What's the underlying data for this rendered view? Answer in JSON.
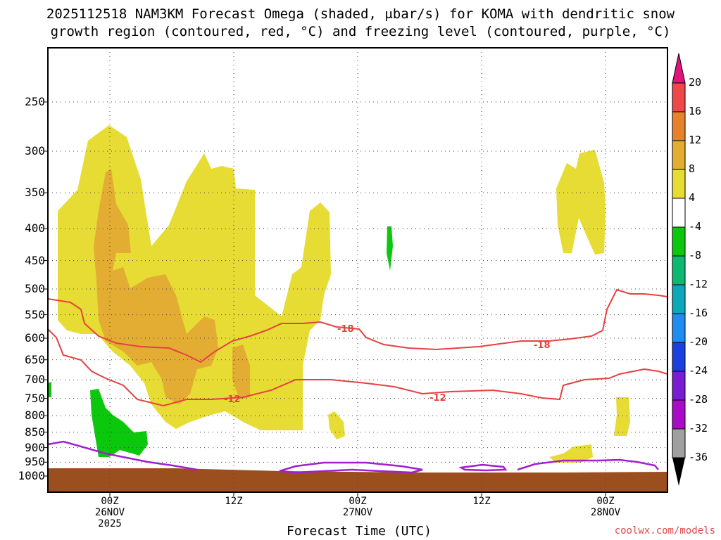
{
  "title": {
    "line1": "2025112518 NAM3KM Forecast Omega (shaded, μbar/s) for KOMA with dendritic snow",
    "line2": "growth region (contoured, red, °C) and freezing level (contoured, purple, °C)"
  },
  "chart_data": {
    "type": "heatmap",
    "title": "2025112518 NAM3KM Forecast Omega (shaded, μbar/s) for KOMA with dendritic snow growth region (contoured, red, °C) and freezing level (contoured, purple, °C)",
    "xlabel": "Forecast Time (UTC)",
    "ylabel": "",
    "y_axis_scale": "log-pressure (inverted)",
    "ylim": [
      1000,
      200
    ],
    "y_ticks": [
      250,
      300,
      350,
      400,
      450,
      500,
      550,
      600,
      650,
      700,
      750,
      800,
      850,
      900,
      950,
      1000
    ],
    "x_ticks": [
      {
        "label": "00Z",
        "sub1": "26NOV",
        "sub2": "2025"
      },
      {
        "label": "12Z",
        "sub1": "",
        "sub2": ""
      },
      {
        "label": "00Z",
        "sub1": "27NOV",
        "sub2": ""
      },
      {
        "label": "12Z",
        "sub1": "",
        "sub2": ""
      },
      {
        "label": "00Z",
        "sub1": "28NOV",
        "sub2": ""
      }
    ],
    "x_tick_hours": [
      6,
      18,
      30,
      42,
      54
    ],
    "xlim_hours": [
      0,
      60
    ],
    "grid": true,
    "colorbar": {
      "labels": [
        "20",
        "16",
        "12",
        "8",
        "4",
        "-4",
        "-8",
        "-12",
        "-16",
        "-20",
        "-24",
        "-28",
        "-32",
        "-36"
      ],
      "colors": [
        "#f04848",
        "#e8822a",
        "#e3ad33",
        "#e6dc34",
        "#ffffff",
        "#0cc80c",
        "#0eb870",
        "#0aa8b8",
        "#1e8cf0",
        "#1c40e0",
        "#7a1cd4",
        "#a80cc8",
        "#a0a0a0",
        "#000000"
      ],
      "top_arrow_color": "#e0137f",
      "bottom_arrow_color": "#000000"
    },
    "contours": {
      "dendritic_labels": [
        "-18",
        "-12",
        "-12",
        "-18"
      ],
      "dendritic_color": "#e84040",
      "freezing_color": "#a020d0",
      "ground_color": "#9c4f1e"
    }
  },
  "credit": "coolwx.com/models"
}
